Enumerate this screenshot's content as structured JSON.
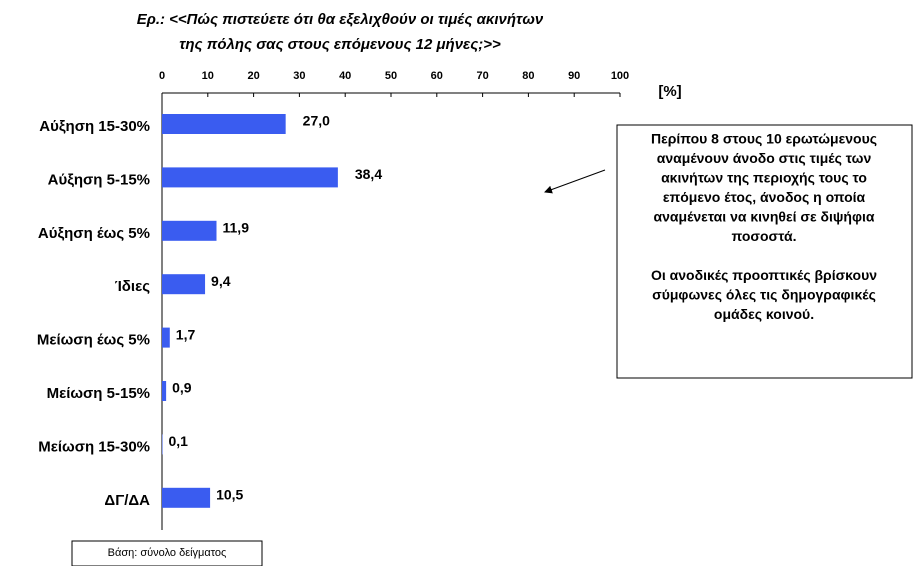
{
  "chart_data": {
    "type": "bar",
    "orientation": "horizontal",
    "title": [
      "Ερ.: <<Πώς πιστεύετε ότι θα εξελιχθούν οι τιμές ακινήτων",
      "της πόλης σας στους επόμενους 12 μήνες;>>"
    ],
    "x_label": "[%]",
    "categories": [
      "Αύξηση 15-30%",
      "Αύξηση 5-15%",
      "Αύξηση έως 5%",
      "Ίδιες",
      "Μείωση έως 5%",
      "Μείωση 5-15%",
      "Μείωση 15-30%",
      "ΔΓ/ΔΑ"
    ],
    "values": [
      27.0,
      38.4,
      11.9,
      9.4,
      1.7,
      0.9,
      0.1,
      10.5
    ],
    "value_labels": [
      "27,0",
      "38,4",
      "11,9",
      "9,4",
      "1,7",
      "0,9",
      "0,1",
      "10,5"
    ],
    "color": "#3a5cf0",
    "xlim": [
      0,
      100
    ],
    "xticks": [
      0,
      10,
      20,
      30,
      40,
      50,
      60,
      70,
      80,
      90,
      100
    ],
    "annotation": [
      [
        "Περίπου 8 στους 10 ερωτώμενους",
        "αναμένουν άνοδο στις τιμές των",
        "ακινήτων της περιοχής τους το",
        "επόμενο έτος, άνοδος η οποία",
        "αναμένεται να κινηθεί σε διψήφια",
        "ποσοστά."
      ],
      [
        "Οι ανοδικές προοπτικές βρίσκουν",
        "σύμφωνες όλες τις δημογραφικές",
        "ομάδες κοινού."
      ]
    ],
    "base_note": "Βάση: σύνολο δείγματος"
  }
}
